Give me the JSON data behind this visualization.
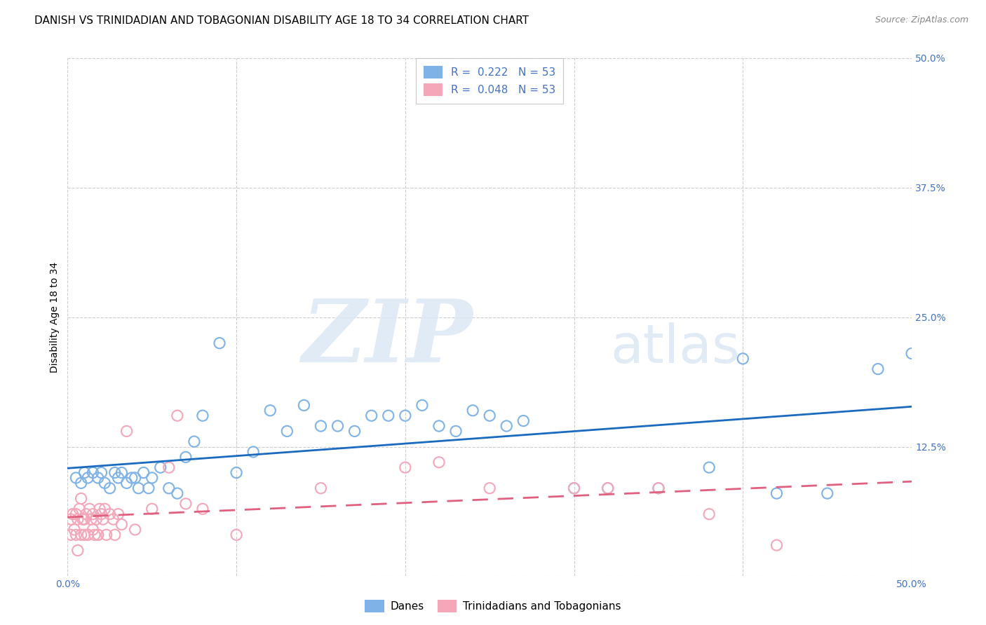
{
  "title": "DANISH VS TRINIDADIAN AND TOBAGONIAN DISABILITY AGE 18 TO 34 CORRELATION CHART",
  "source": "Source: ZipAtlas.com",
  "ylabel": "Disability Age 18 to 34",
  "xlim": [
    0.0,
    0.5
  ],
  "ylim": [
    0.0,
    0.5
  ],
  "xticks": [
    0.0,
    0.1,
    0.2,
    0.3,
    0.4,
    0.5
  ],
  "xticklabels": [
    "0.0%",
    "",
    "",
    "",
    "",
    "50.0%"
  ],
  "yticks": [
    0.0,
    0.125,
    0.25,
    0.375,
    0.5
  ],
  "yticklabels": [
    "",
    "12.5%",
    "25.0%",
    "37.5%",
    "50.0%"
  ],
  "legend_label_blue": "Danes",
  "legend_label_pink": "Trinidadians and Tobagonians",
  "blue_color": "#7fb3e8",
  "pink_color": "#f4a7b9",
  "line_blue": "#1a6bbf",
  "line_pink": "#e06080",
  "blue_R": "0.222",
  "blue_N": "53",
  "pink_R": "0.048",
  "pink_N": "53",
  "blue_x": [
    0.005,
    0.008,
    0.01,
    0.012,
    0.015,
    0.018,
    0.02,
    0.022,
    0.025,
    0.028,
    0.03,
    0.032,
    0.035,
    0.038,
    0.04,
    0.042,
    0.045,
    0.048,
    0.05,
    0.055,
    0.06,
    0.065,
    0.07,
    0.075,
    0.08,
    0.09,
    0.1,
    0.11,
    0.12,
    0.13,
    0.14,
    0.15,
    0.16,
    0.17,
    0.18,
    0.19,
    0.2,
    0.21,
    0.22,
    0.23,
    0.24,
    0.25,
    0.26,
    0.27,
    0.3,
    0.32,
    0.35,
    0.38,
    0.4,
    0.42,
    0.45,
    0.48,
    0.5
  ],
  "blue_y": [
    0.095,
    0.09,
    0.1,
    0.095,
    0.1,
    0.095,
    0.1,
    0.09,
    0.085,
    0.1,
    0.095,
    0.1,
    0.09,
    0.095,
    0.095,
    0.085,
    0.1,
    0.085,
    0.095,
    0.105,
    0.085,
    0.08,
    0.115,
    0.13,
    0.155,
    0.225,
    0.1,
    0.12,
    0.16,
    0.14,
    0.165,
    0.145,
    0.145,
    0.14,
    0.155,
    0.155,
    0.155,
    0.165,
    0.145,
    0.14,
    0.16,
    0.155,
    0.145,
    0.15,
    0.085,
    0.085,
    0.085,
    0.105,
    0.21,
    0.08,
    0.08,
    0.2,
    0.215
  ],
  "pink_x": [
    0.002,
    0.003,
    0.005,
    0.005,
    0.006,
    0.007,
    0.008,
    0.008,
    0.009,
    0.01,
    0.01,
    0.011,
    0.012,
    0.013,
    0.014,
    0.015,
    0.016,
    0.017,
    0.018,
    0.019,
    0.02,
    0.021,
    0.022,
    0.023,
    0.025,
    0.027,
    0.028,
    0.03,
    0.032,
    0.035,
    0.04,
    0.05,
    0.06,
    0.065,
    0.07,
    0.08,
    0.1,
    0.15,
    0.2,
    0.22,
    0.25,
    0.3,
    0.32,
    0.35,
    0.38,
    0.42,
    0.002,
    0.004,
    0.006,
    0.009,
    0.012,
    0.015,
    0.018
  ],
  "pink_y": [
    0.055,
    0.06,
    0.04,
    0.06,
    0.055,
    0.065,
    0.04,
    0.075,
    0.055,
    0.055,
    0.04,
    0.06,
    0.04,
    0.065,
    0.055,
    0.06,
    0.04,
    0.055,
    0.04,
    0.065,
    0.06,
    0.055,
    0.065,
    0.04,
    0.06,
    0.055,
    0.04,
    0.06,
    0.05,
    0.14,
    0.045,
    0.065,
    0.105,
    0.155,
    0.07,
    0.065,
    0.04,
    0.085,
    0.105,
    0.11,
    0.085,
    0.085,
    0.085,
    0.085,
    0.06,
    0.03,
    0.04,
    0.045,
    0.025,
    0.055,
    0.04,
    0.045,
    0.04
  ],
  "watermark_zip": "ZIP",
  "watermark_atlas": "atlas",
  "background_color": "#ffffff",
  "grid_color": "#cccccc",
  "title_fontsize": 11,
  "axis_label_fontsize": 10,
  "tick_fontsize": 10,
  "legend_fontsize": 11,
  "tick_color": "#4472c4"
}
